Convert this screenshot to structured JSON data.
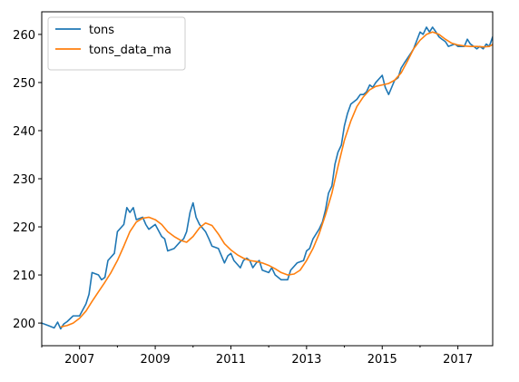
{
  "chart_data": {
    "type": "line",
    "title": "",
    "xlabel": "",
    "ylabel": "",
    "xlim": [
      2006.0,
      2017.92
    ],
    "ylim": [
      195.3,
      264.7
    ],
    "grid": false,
    "legend_position": "upper-left",
    "xticks": [
      2007,
      2009,
      2011,
      2013,
      2015,
      2017
    ],
    "xtick_labels": [
      "2007",
      "2009",
      "2011",
      "2013",
      "2015",
      "2017"
    ],
    "yticks": [
      200,
      210,
      220,
      230,
      240,
      250,
      260
    ],
    "ytick_labels": [
      "200",
      "210",
      "220",
      "230",
      "240",
      "250",
      "260"
    ],
    "series": [
      {
        "name": "tons",
        "color": "#1f77b4",
        "points": [
          [
            2006.0,
            200.0
          ],
          [
            2006.17,
            199.5
          ],
          [
            2006.33,
            199.0
          ],
          [
            2006.42,
            200.2
          ],
          [
            2006.5,
            198.8
          ],
          [
            2006.58,
            199.8
          ],
          [
            2006.67,
            200.3
          ],
          [
            2006.83,
            201.5
          ],
          [
            2007.0,
            201.5
          ],
          [
            2007.17,
            204.0
          ],
          [
            2007.25,
            206.0
          ],
          [
            2007.33,
            210.5
          ],
          [
            2007.5,
            210.0
          ],
          [
            2007.58,
            209.0
          ],
          [
            2007.67,
            209.5
          ],
          [
            2007.75,
            213.0
          ],
          [
            2007.92,
            214.5
          ],
          [
            2008.0,
            219.0
          ],
          [
            2008.17,
            220.5
          ],
          [
            2008.25,
            224.0
          ],
          [
            2008.33,
            223.0
          ],
          [
            2008.42,
            224.0
          ],
          [
            2008.5,
            221.5
          ],
          [
            2008.67,
            222.0
          ],
          [
            2008.75,
            220.5
          ],
          [
            2008.83,
            219.5
          ],
          [
            2009.0,
            220.5
          ],
          [
            2009.17,
            218.0
          ],
          [
            2009.25,
            217.5
          ],
          [
            2009.33,
            215.0
          ],
          [
            2009.5,
            215.5
          ],
          [
            2009.67,
            217.0
          ],
          [
            2009.75,
            217.5
          ],
          [
            2009.83,
            219.0
          ],
          [
            2009.92,
            223.0
          ],
          [
            2010.0,
            225.0
          ],
          [
            2010.08,
            222.0
          ],
          [
            2010.17,
            220.5
          ],
          [
            2010.33,
            219.0
          ],
          [
            2010.42,
            217.5
          ],
          [
            2010.5,
            216.0
          ],
          [
            2010.67,
            215.5
          ],
          [
            2010.75,
            214.0
          ],
          [
            2010.83,
            212.5
          ],
          [
            2010.92,
            214.0
          ],
          [
            2011.0,
            214.5
          ],
          [
            2011.08,
            213.0
          ],
          [
            2011.25,
            211.5
          ],
          [
            2011.33,
            213.0
          ],
          [
            2011.42,
            213.5
          ],
          [
            2011.5,
            213.0
          ],
          [
            2011.58,
            211.5
          ],
          [
            2011.67,
            212.5
          ],
          [
            2011.75,
            213.0
          ],
          [
            2011.83,
            211.0
          ],
          [
            2012.0,
            210.5
          ],
          [
            2012.08,
            211.5
          ],
          [
            2012.17,
            210.0
          ],
          [
            2012.33,
            209.0
          ],
          [
            2012.5,
            209.0
          ],
          [
            2012.58,
            211.0
          ],
          [
            2012.75,
            212.5
          ],
          [
            2012.92,
            213.0
          ],
          [
            2013.0,
            215.0
          ],
          [
            2013.08,
            215.5
          ],
          [
            2013.17,
            217.5
          ],
          [
            2013.33,
            219.5
          ],
          [
            2013.42,
            221.0
          ],
          [
            2013.5,
            223.5
          ],
          [
            2013.58,
            227.0
          ],
          [
            2013.67,
            228.5
          ],
          [
            2013.75,
            233.0
          ],
          [
            2013.83,
            235.5
          ],
          [
            2013.92,
            237.0
          ],
          [
            2014.0,
            241.0
          ],
          [
            2014.08,
            243.5
          ],
          [
            2014.17,
            245.5
          ],
          [
            2014.25,
            246.0
          ],
          [
            2014.33,
            246.5
          ],
          [
            2014.42,
            247.5
          ],
          [
            2014.5,
            247.5
          ],
          [
            2014.58,
            248.0
          ],
          [
            2014.67,
            249.5
          ],
          [
            2014.75,
            249.0
          ],
          [
            2014.83,
            250.0
          ],
          [
            2015.0,
            251.5
          ],
          [
            2015.08,
            249.0
          ],
          [
            2015.17,
            247.5
          ],
          [
            2015.25,
            249.0
          ],
          [
            2015.33,
            250.5
          ],
          [
            2015.42,
            251.0
          ],
          [
            2015.5,
            253.0
          ],
          [
            2015.58,
            254.0
          ],
          [
            2015.75,
            256.0
          ],
          [
            2015.83,
            257.0
          ],
          [
            2016.0,
            260.5
          ],
          [
            2016.08,
            260.0
          ],
          [
            2016.17,
            261.5
          ],
          [
            2016.25,
            260.5
          ],
          [
            2016.33,
            261.5
          ],
          [
            2016.42,
            260.5
          ],
          [
            2016.5,
            259.5
          ],
          [
            2016.58,
            259.0
          ],
          [
            2016.67,
            258.5
          ],
          [
            2016.75,
            257.5
          ],
          [
            2016.92,
            258.0
          ],
          [
            2017.0,
            257.5
          ],
          [
            2017.08,
            257.5
          ],
          [
            2017.17,
            257.5
          ],
          [
            2017.25,
            259.0
          ],
          [
            2017.33,
            258.0
          ],
          [
            2017.42,
            257.5
          ],
          [
            2017.5,
            257.0
          ],
          [
            2017.58,
            257.5
          ],
          [
            2017.67,
            257.0
          ],
          [
            2017.75,
            258.0
          ],
          [
            2017.83,
            257.5
          ],
          [
            2017.92,
            259.5
          ],
          [
            2018.0,
            261.0
          ]
        ]
      },
      {
        "name": "tons_data_ma",
        "color": "#ff7f0e",
        "points": [
          [
            2006.5,
            199.2
          ],
          [
            2006.67,
            199.5
          ],
          [
            2006.83,
            200.0
          ],
          [
            2007.0,
            201.0
          ],
          [
            2007.17,
            202.5
          ],
          [
            2007.33,
            204.5
          ],
          [
            2007.5,
            206.5
          ],
          [
            2007.67,
            208.5
          ],
          [
            2007.83,
            210.5
          ],
          [
            2008.0,
            213.0
          ],
          [
            2008.17,
            216.0
          ],
          [
            2008.33,
            219.0
          ],
          [
            2008.5,
            221.0
          ],
          [
            2008.67,
            221.8
          ],
          [
            2008.83,
            222.0
          ],
          [
            2009.0,
            221.5
          ],
          [
            2009.17,
            220.5
          ],
          [
            2009.33,
            219.0
          ],
          [
            2009.5,
            218.0
          ],
          [
            2009.67,
            217.2
          ],
          [
            2009.83,
            216.8
          ],
          [
            2010.0,
            218.0
          ],
          [
            2010.17,
            219.8
          ],
          [
            2010.33,
            220.8
          ],
          [
            2010.5,
            220.3
          ],
          [
            2010.67,
            218.5
          ],
          [
            2010.83,
            216.5
          ],
          [
            2011.0,
            215.2
          ],
          [
            2011.17,
            214.2
          ],
          [
            2011.33,
            213.5
          ],
          [
            2011.5,
            213.0
          ],
          [
            2011.67,
            212.8
          ],
          [
            2011.83,
            212.5
          ],
          [
            2012.0,
            212.0
          ],
          [
            2012.17,
            211.3
          ],
          [
            2012.33,
            210.5
          ],
          [
            2012.5,
            210.0
          ],
          [
            2012.67,
            210.2
          ],
          [
            2012.83,
            211.0
          ],
          [
            2013.0,
            213.0
          ],
          [
            2013.17,
            215.5
          ],
          [
            2013.33,
            218.5
          ],
          [
            2013.5,
            222.5
          ],
          [
            2013.67,
            227.0
          ],
          [
            2013.83,
            232.5
          ],
          [
            2014.0,
            238.0
          ],
          [
            2014.17,
            242.0
          ],
          [
            2014.33,
            245.0
          ],
          [
            2014.5,
            247.0
          ],
          [
            2014.67,
            248.5
          ],
          [
            2014.83,
            249.2
          ],
          [
            2015.0,
            249.5
          ],
          [
            2015.17,
            249.8
          ],
          [
            2015.33,
            250.5
          ],
          [
            2015.5,
            252.0
          ],
          [
            2015.67,
            254.5
          ],
          [
            2015.83,
            257.0
          ],
          [
            2016.0,
            258.8
          ],
          [
            2016.17,
            260.0
          ],
          [
            2016.33,
            260.5
          ],
          [
            2016.5,
            260.0
          ],
          [
            2016.67,
            259.0
          ],
          [
            2016.83,
            258.2
          ],
          [
            2017.0,
            257.8
          ],
          [
            2017.17,
            257.6
          ],
          [
            2017.33,
            257.5
          ],
          [
            2017.5,
            257.5
          ],
          [
            2017.67,
            257.4
          ],
          [
            2017.83,
            257.5
          ],
          [
            2018.0,
            258.3
          ]
        ]
      }
    ]
  }
}
